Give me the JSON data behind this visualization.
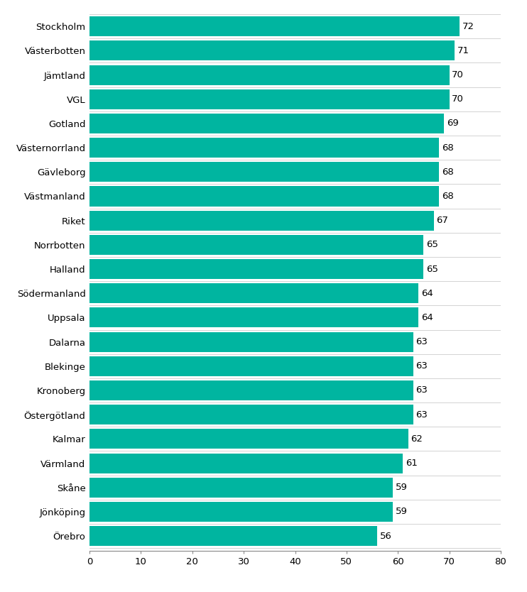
{
  "categories": [
    "Stockholm",
    "Västerbotten",
    "Jämtland",
    "VGL",
    "Gotland",
    "Västernorrland",
    "Gävleborg",
    "Västmanland",
    "Riket",
    "Norrbotten",
    "Halland",
    "Södermanland",
    "Uppsala",
    "Dalarna",
    "Blekinge",
    "Kronoberg",
    "Östergötland",
    "Kalmar",
    "Värmland",
    "Skåne",
    "Jönköping",
    "Örebro"
  ],
  "values": [
    72,
    71,
    70,
    70,
    69,
    68,
    68,
    68,
    67,
    65,
    65,
    64,
    64,
    63,
    63,
    63,
    63,
    62,
    61,
    59,
    59,
    56
  ],
  "bar_color": "#00B5A0",
  "label_fontsize": 9.5,
  "tick_fontsize": 9.5,
  "xlim": [
    0,
    80
  ],
  "xticks": [
    0,
    10,
    20,
    30,
    40,
    50,
    60,
    70,
    80
  ],
  "background_color": "#ffffff",
  "bar_height": 0.82,
  "separator_color": "#cccccc",
  "separator_linewidth": 0.6
}
